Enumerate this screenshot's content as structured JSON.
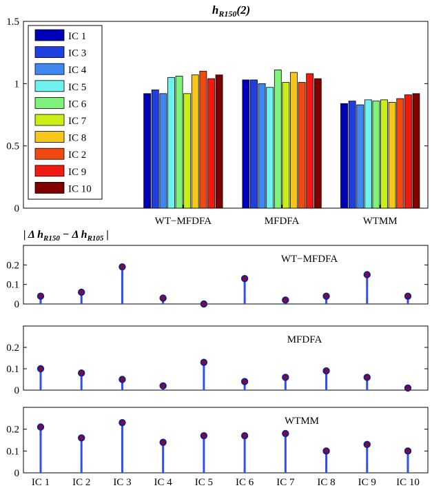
{
  "chart_data": [
    {
      "type": "bar",
      "title": "h",
      "title_subscript": "R150",
      "title_suffix": "(2)",
      "ylim": [
        0,
        1.5
      ],
      "yticks": [
        "0",
        "0.5",
        "1",
        "1.5"
      ],
      "ytick_values": [
        0,
        0.5,
        1,
        1.5
      ],
      "categories": [
        "WT−MFDFA",
        "MFDFA",
        "WTMM"
      ],
      "legend_position": "top-left",
      "series": [
        {
          "name": "IC 1",
          "color": "#0000b8",
          "values": [
            0.92,
            1.03,
            0.84
          ]
        },
        {
          "name": "IC 3",
          "color": "#1f3fe0",
          "values": [
            0.95,
            1.03,
            0.86
          ]
        },
        {
          "name": "IC 4",
          "color": "#3f88f0",
          "values": [
            0.92,
            1.0,
            0.83
          ]
        },
        {
          "name": "IC 5",
          "color": "#6ff2ee",
          "values": [
            1.05,
            0.97,
            0.87
          ]
        },
        {
          "name": "IC 6",
          "color": "#7ef27a",
          "values": [
            1.06,
            1.11,
            0.86
          ]
        },
        {
          "name": "IC 7",
          "color": "#c9f016",
          "values": [
            0.92,
            1.01,
            0.87
          ]
        },
        {
          "name": "IC 8",
          "color": "#f7c61c",
          "values": [
            1.07,
            1.09,
            0.85
          ]
        },
        {
          "name": "IC 2",
          "color": "#f04a10",
          "values": [
            1.1,
            1.01,
            0.88
          ]
        },
        {
          "name": "IC 9",
          "color": "#f01a10",
          "values": [
            1.04,
            1.08,
            0.91
          ]
        },
        {
          "name": "IC 10",
          "color": "#800000",
          "values": [
            1.07,
            1.04,
            0.92
          ]
        }
      ]
    },
    {
      "type": "stem",
      "panel_label": "WT−MFDFA",
      "ylabel_parts": [
        "| Δ h",
        "R150",
        " − Δ h",
        "R105",
        " |"
      ],
      "ylim": [
        0,
        0.3
      ],
      "yticks": [
        "0",
        "0.1",
        "0.2"
      ],
      "ytick_values": [
        0,
        0.1,
        0.2
      ],
      "values": [
        0.04,
        0.06,
        0.19,
        0.03,
        0.0,
        0.13,
        0.02,
        0.04,
        0.15,
        0.04
      ]
    },
    {
      "type": "stem",
      "panel_label": "MFDFA",
      "ylim": [
        0,
        0.3
      ],
      "yticks": [
        "0",
        "0.1",
        "0.2"
      ],
      "ytick_values": [
        0,
        0.1,
        0.2
      ],
      "values": [
        0.1,
        0.08,
        0.05,
        0.02,
        0.13,
        0.04,
        0.06,
        0.09,
        0.06,
        0.01
      ]
    },
    {
      "type": "stem",
      "panel_label": "WTMM",
      "ylim": [
        0,
        0.3
      ],
      "yticks": [
        "0",
        "0.1",
        "0.2"
      ],
      "ytick_values": [
        0,
        0.1,
        0.2
      ],
      "values": [
        0.21,
        0.16,
        0.23,
        0.14,
        0.17,
        0.17,
        0.18,
        0.1,
        0.13,
        0.1
      ],
      "xtick_labels": [
        "IC 1",
        "IC 2",
        "IC 3",
        "IC 4",
        "IC 5",
        "IC 6",
        "IC 7",
        "IC 8",
        "IC 9",
        "IC 10"
      ]
    }
  ],
  "colors": {
    "stem": "#2f4ff0",
    "marker_edge": "#1a1a9a",
    "marker_fill": "#7a1030"
  }
}
